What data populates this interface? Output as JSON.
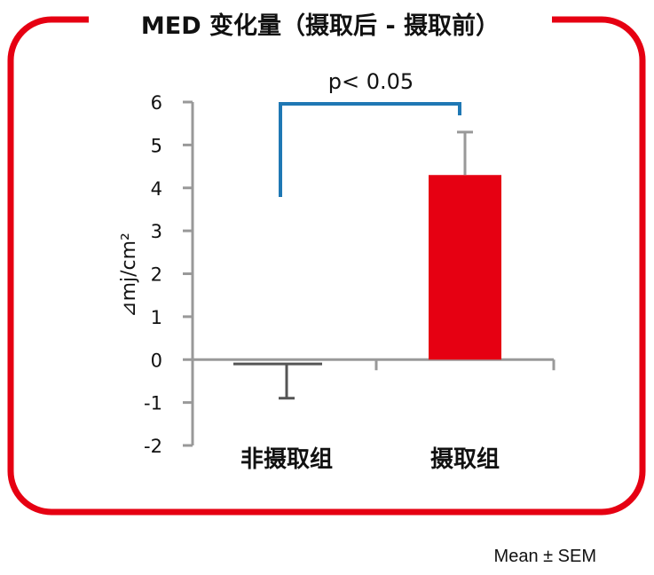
{
  "chart_data": {
    "type": "bar",
    "title": "MED 变化量（摄取后 - 摄取前）",
    "ylabel": "⊿mj/cm²",
    "xlabel": "",
    "categories": [
      "非摄取组",
      "摄取组"
    ],
    "values": [
      -0.1,
      4.3
    ],
    "error": [
      0.8,
      1.0
    ],
    "ylim": [
      -2,
      6
    ],
    "yticks": [
      "6",
      "5",
      "4",
      "3",
      "2",
      "1",
      "0",
      "-1",
      "-2"
    ],
    "annotation": "p< 0.05",
    "footnote": "Mean ± SEM",
    "grid": false,
    "colors": {
      "frame": "#e60012",
      "bar_highlight": "#e60012",
      "bar_other": "#555555",
      "bracket": "#1f78b4",
      "axis": "#999999",
      "error_bar_highlight": "#999999",
      "error_bar_other": "#555555"
    }
  }
}
